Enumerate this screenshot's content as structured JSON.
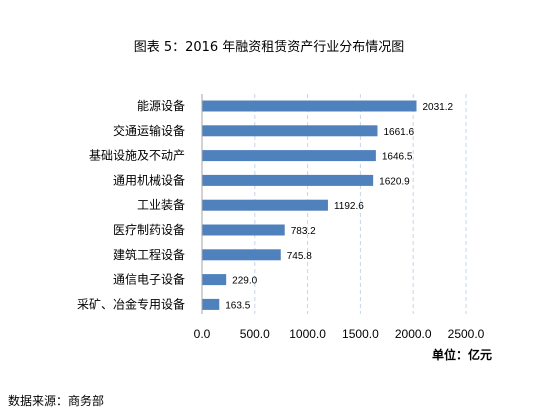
{
  "chart_data": {
    "type": "bar",
    "orientation": "horizontal",
    "title": "图表 5：2016 年融资租赁资产行业分布情况图",
    "categories": [
      "能源设备",
      "交通运输设备",
      "基础设施及不动产",
      "通用机械设备",
      "工业装备",
      "医疗制药设备",
      "建筑工程设备",
      "通信电子设备",
      "采矿、冶金专用设备"
    ],
    "values": [
      2031.2,
      1661.6,
      1646.5,
      1620.9,
      1192.6,
      783.2,
      745.8,
      229.0,
      163.5
    ],
    "value_labels": [
      "2031.2",
      "1661.6",
      "1646.5",
      "1620.9",
      "1192.6",
      "783.2",
      "745.8",
      "229.0",
      "163.5"
    ],
    "xlim": [
      0,
      2500
    ],
    "x_ticks": [
      0,
      500,
      1000,
      1500,
      2000,
      2500
    ],
    "x_tick_labels": [
      "0.0",
      "500.0",
      "1000.0",
      "1500.0",
      "2000.0",
      "2500.0"
    ],
    "unit": "单位：亿元",
    "grid": true,
    "bar_color": "#4f81bd",
    "grid_color": "#c6d4ea"
  },
  "source": "数据来源：商务部"
}
